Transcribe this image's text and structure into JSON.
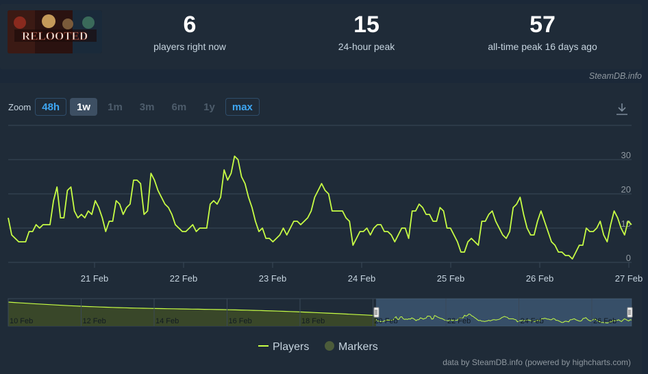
{
  "stats": [
    {
      "value": "6",
      "label": "players right now"
    },
    {
      "value": "15",
      "label": "24-hour peak"
    },
    {
      "value": "57",
      "label": "all-time peak 16 days ago"
    }
  ],
  "logo_text": "RELOOTED",
  "credit_top": "SteamDB.info",
  "zoom": {
    "label": "Zoom",
    "buttons": [
      {
        "label": "48h",
        "state": "highlight"
      },
      {
        "label": "1w",
        "state": "selected"
      },
      {
        "label": "1m",
        "state": "disabled"
      },
      {
        "label": "3m",
        "state": "disabled"
      },
      {
        "label": "6m",
        "state": "disabled"
      },
      {
        "label": "1y",
        "state": "disabled"
      },
      {
        "label": "max",
        "state": "highlight"
      }
    ]
  },
  "colors": {
    "series": "#c8ff45",
    "navigator_fill": "#4a6d8f",
    "markers": "#4c5c3a"
  },
  "chart_data": {
    "type": "line",
    "x_unit": "date",
    "x_start": "20 Feb",
    "x_end": "27 Feb",
    "xticks": [
      "21 Feb",
      "22 Feb",
      "23 Feb",
      "24 Feb",
      "25 Feb",
      "26 Feb",
      "27 Feb"
    ],
    "yticks": [
      0,
      10,
      20,
      30
    ],
    "ylim": [
      0,
      32
    ],
    "grid": true,
    "series": [
      {
        "name": "Players",
        "values": [
          13,
          8,
          7,
          6,
          6,
          6,
          9,
          9,
          11,
          10,
          11,
          11,
          11,
          18,
          22,
          13,
          13,
          21,
          22,
          15,
          13,
          14,
          13,
          15,
          14,
          18,
          16,
          13,
          9,
          12,
          12,
          18,
          17,
          14,
          16,
          17,
          24,
          24,
          23,
          14,
          15,
          26,
          24,
          21,
          19,
          17,
          16,
          14,
          11,
          10,
          9,
          9,
          10,
          11,
          9,
          10,
          10,
          10,
          17,
          18,
          17,
          19,
          27,
          24,
          26,
          31,
          30,
          25,
          23,
          19,
          16,
          12,
          9,
          10,
          7,
          7,
          6,
          7,
          8,
          10,
          8,
          10,
          12,
          12,
          11,
          12,
          13,
          15,
          19,
          21,
          23,
          21,
          20,
          15,
          15,
          15,
          15,
          13,
          12,
          5,
          7,
          9,
          9,
          10,
          8,
          10,
          11,
          11,
          9,
          9,
          8,
          6,
          8,
          10,
          10,
          7,
          15,
          15,
          17,
          16,
          14,
          14,
          12,
          12,
          16,
          15,
          10,
          10,
          8,
          6,
          3,
          3,
          6,
          7,
          6,
          5,
          12,
          12,
          14,
          15,
          12,
          10,
          8,
          7,
          9,
          16,
          17,
          19,
          14,
          10,
          8,
          8,
          12,
          15,
          12,
          9,
          6,
          5,
          3,
          3,
          2,
          2,
          1,
          3,
          5,
          5,
          10,
          9,
          9,
          10,
          12,
          8,
          6,
          11,
          15,
          13,
          10,
          8,
          12,
          11
        ]
      }
    ],
    "navigator": {
      "xticks": [
        "10 Feb",
        "12 Feb",
        "14 Feb",
        "16 Feb",
        "18 Feb",
        "20 Feb",
        "22 Feb",
        "24 Feb",
        "26 Feb"
      ]
    },
    "legend": [
      {
        "label": "Players",
        "kind": "line"
      },
      {
        "label": "Markers",
        "kind": "circle"
      }
    ],
    "legend_position": "bottom-center"
  },
  "footer": "data by SteamDB.info (powered by highcharts.com)"
}
